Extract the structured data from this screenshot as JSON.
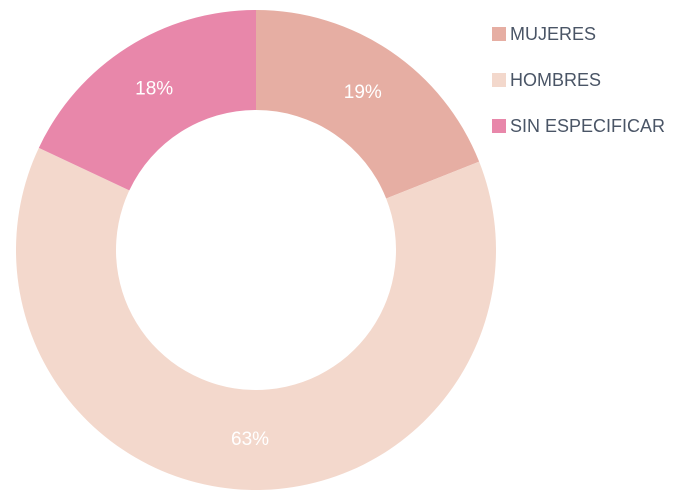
{
  "chart_data": {
    "type": "donut",
    "categories": [
      "MUJERES",
      "HOMBRES",
      "SIN ESPECIFICAR"
    ],
    "values": [
      19,
      63,
      18
    ],
    "value_labels": [
      "19%",
      "63%",
      "18%"
    ],
    "colors": [
      "#e6aea3",
      "#f3d8cc",
      "#e887aa"
    ],
    "legend": "top-right"
  }
}
